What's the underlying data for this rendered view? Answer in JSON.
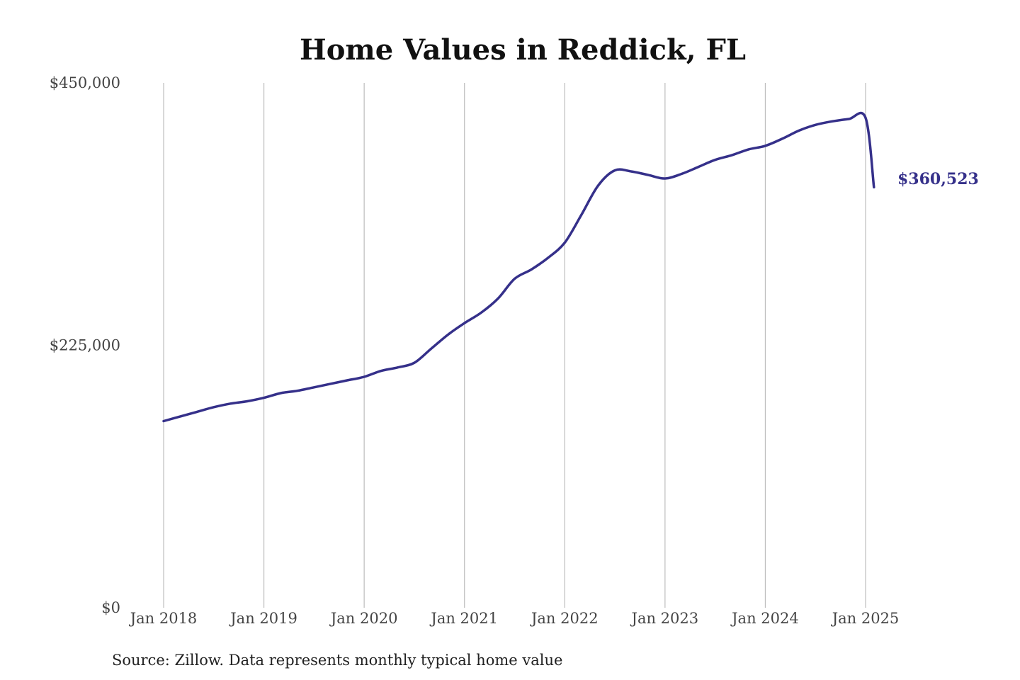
{
  "chart_data": {
    "type": "line",
    "title": "Home Values in Reddick, FL",
    "source": "Source: Zillow. Data represents monthly typical home value",
    "end_label": "$360,523",
    "ylim": [
      0,
      450000
    ],
    "y_ticks": [
      {
        "value": 0,
        "label": "$0"
      },
      {
        "value": 225000,
        "label": "$225,000"
      },
      {
        "value": 450000,
        "label": "$450,000"
      }
    ],
    "x_ticks": [
      {
        "value": "2018-01",
        "label": "Jan 2018"
      },
      {
        "value": "2019-01",
        "label": "Jan 2019"
      },
      {
        "value": "2020-01",
        "label": "Jan 2020"
      },
      {
        "value": "2021-01",
        "label": "Jan 2021"
      },
      {
        "value": "2022-01",
        "label": "Jan 2022"
      },
      {
        "value": "2023-01",
        "label": "Jan 2023"
      },
      {
        "value": "2024-01",
        "label": "Jan 2024"
      },
      {
        "value": "2025-01",
        "label": "Jan 2025"
      }
    ],
    "grid": "vertical",
    "line_color": "#35308a",
    "series": [
      {
        "x": [
          "2018-01",
          "2018-03",
          "2018-05",
          "2018-07",
          "2018-09",
          "2018-11",
          "2019-01",
          "2019-03",
          "2019-05",
          "2019-07",
          "2019-09",
          "2019-11",
          "2020-01",
          "2020-03",
          "2020-05",
          "2020-07",
          "2020-09",
          "2020-11",
          "2021-01",
          "2021-03",
          "2021-05",
          "2021-07",
          "2021-09",
          "2021-11",
          "2022-01",
          "2022-03",
          "2022-05",
          "2022-07",
          "2022-09",
          "2022-11",
          "2023-01",
          "2023-03",
          "2023-05",
          "2023-07",
          "2023-09",
          "2023-11",
          "2024-01",
          "2024-03",
          "2024-05",
          "2024-07",
          "2024-09",
          "2024-11",
          "2025-01",
          "2025-02"
        ],
        "y": [
          160000,
          164000,
          168000,
          172000,
          175000,
          177000,
          180000,
          184000,
          186000,
          189000,
          192000,
          195000,
          198000,
          203000,
          206000,
          210000,
          222000,
          234000,
          244000,
          253000,
          265000,
          282000,
          290000,
          300000,
          313000,
          337000,
          362000,
          375000,
          374000,
          371000,
          368000,
          372000,
          378000,
          384000,
          388000,
          393000,
          396000,
          402000,
          409000,
          414000,
          417000,
          419000,
          420000,
          360523
        ]
      }
    ]
  }
}
